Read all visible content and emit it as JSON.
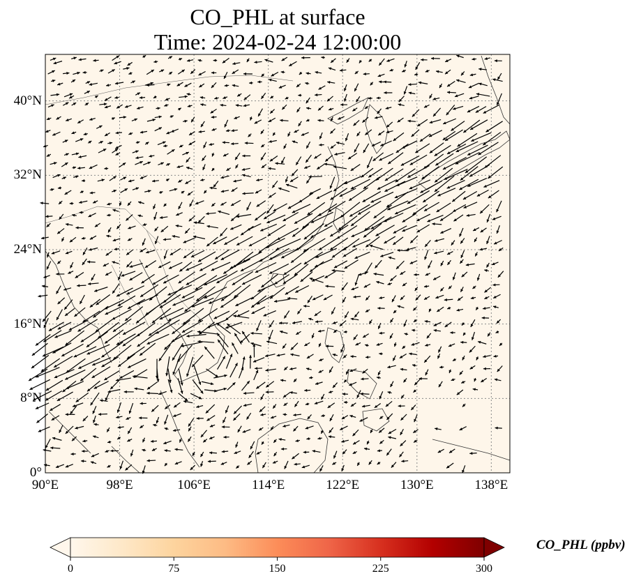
{
  "title": {
    "line1": "CO_PHL at surface",
    "line2": "Time: 2024-02-24 12:00:00"
  },
  "map": {
    "extent": {
      "lon_min": 90,
      "lon_max": 140,
      "lat_min": 0,
      "lat_max": 45
    },
    "background_color": "#fef6ea",
    "gridlines": "dotted grey",
    "lat_ticks": [
      "0°",
      "8°N",
      "16°N",
      "24°N",
      "32°N",
      "40°N"
    ],
    "lat_values": [
      0,
      8,
      16,
      24,
      32,
      40
    ],
    "lon_ticks": [
      "90°E",
      "98°E",
      "106°E",
      "114°E",
      "122°E",
      "130°E",
      "138°E"
    ],
    "lon_values": [
      90,
      98,
      106,
      114,
      122,
      130,
      138
    ],
    "vector_field": "black quiver arrows (wind)"
  },
  "colorbar": {
    "label": "CO_PHL (ppbv)",
    "colormap": "OrRd",
    "colors": [
      "#fff7ec",
      "#fee8c8",
      "#fdd49e",
      "#fdbb84",
      "#fc8d59",
      "#ef6548",
      "#d7301f",
      "#b30000",
      "#7f0000"
    ],
    "ticks": [
      "0",
      "75",
      "150",
      "225",
      "300"
    ],
    "tick_values": [
      0,
      75,
      150,
      225,
      300
    ],
    "range": [
      0,
      300
    ],
    "extend": "both"
  }
}
